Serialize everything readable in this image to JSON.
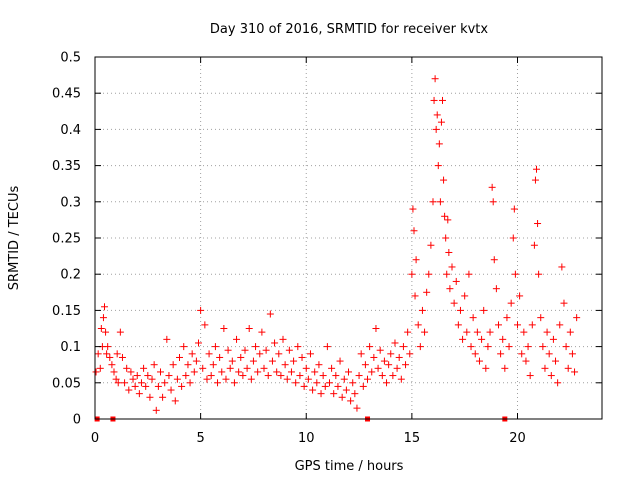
{
  "chart_data": {
    "type": "scatter",
    "title": "Day 310 of 2016, SRMTID for receiver kvtx",
    "xlabel": "GPS time / hours",
    "ylabel": "SRMTID / TECUs",
    "xlim": [
      0,
      24
    ],
    "ylim": [
      0,
      0.5
    ],
    "xticks": [
      0,
      5,
      10,
      15,
      20
    ],
    "yticks": [
      0,
      0.05,
      0.1,
      0.15,
      0.2,
      0.25,
      0.3,
      0.35,
      0.4,
      0.45,
      0.5
    ],
    "grid": true,
    "legend": "none",
    "marker": "plus",
    "color": "#ff0000",
    "gap_markers_x": [
      0.1,
      0.85,
      12.9,
      19.4
    ],
    "series": [
      {
        "name": "kvtx",
        "points": [
          [
            0.05,
            0.065
          ],
          [
            0.15,
            0.09
          ],
          [
            0.25,
            0.07
          ],
          [
            0.3,
            0.125
          ],
          [
            0.35,
            0.1
          ],
          [
            0.4,
            0.14
          ],
          [
            0.45,
            0.155
          ],
          [
            0.5,
            0.12
          ],
          [
            0.55,
            0.09
          ],
          [
            0.6,
            0.1
          ],
          [
            0.7,
            0.085
          ],
          [
            0.8,
            0.075
          ],
          [
            0.9,
            0.065
          ],
          [
            1.0,
            0.055
          ],
          [
            1.05,
            0.09
          ],
          [
            1.1,
            0.05
          ],
          [
            1.2,
            0.12
          ],
          [
            1.3,
            0.085
          ],
          [
            1.4,
            0.05
          ],
          [
            1.5,
            0.07
          ],
          [
            1.6,
            0.04
          ],
          [
            1.7,
            0.065
          ],
          [
            1.8,
            0.055
          ],
          [
            1.9,
            0.045
          ],
          [
            2.0,
            0.06
          ],
          [
            2.1,
            0.035
          ],
          [
            2.2,
            0.05
          ],
          [
            2.3,
            0.07
          ],
          [
            2.4,
            0.045
          ],
          [
            2.5,
            0.06
          ],
          [
            2.6,
            0.03
          ],
          [
            2.7,
            0.055
          ],
          [
            2.8,
            0.075
          ],
          [
            2.9,
            0.012
          ],
          [
            3.0,
            0.045
          ],
          [
            3.1,
            0.065
          ],
          [
            3.2,
            0.03
          ],
          [
            3.3,
            0.05
          ],
          [
            3.4,
            0.11
          ],
          [
            3.5,
            0.06
          ],
          [
            3.6,
            0.04
          ],
          [
            3.7,
            0.075
          ],
          [
            3.8,
            0.025
          ],
          [
            3.9,
            0.055
          ],
          [
            4.0,
            0.085
          ],
          [
            4.1,
            0.045
          ],
          [
            4.2,
            0.1
          ],
          [
            4.3,
            0.06
          ],
          [
            4.4,
            0.075
          ],
          [
            4.5,
            0.05
          ],
          [
            4.6,
            0.09
          ],
          [
            4.7,
            0.065
          ],
          [
            4.8,
            0.08
          ],
          [
            4.9,
            0.105
          ],
          [
            5.0,
            0.15
          ],
          [
            5.1,
            0.07
          ],
          [
            5.2,
            0.13
          ],
          [
            5.3,
            0.055
          ],
          [
            5.4,
            0.09
          ],
          [
            5.5,
            0.06
          ],
          [
            5.6,
            0.075
          ],
          [
            5.7,
            0.1
          ],
          [
            5.8,
            0.05
          ],
          [
            5.9,
            0.085
          ],
          [
            6.0,
            0.065
          ],
          [
            6.1,
            0.125
          ],
          [
            6.2,
            0.055
          ],
          [
            6.3,
            0.095
          ],
          [
            6.4,
            0.07
          ],
          [
            6.5,
            0.08
          ],
          [
            6.6,
            0.05
          ],
          [
            6.7,
            0.11
          ],
          [
            6.8,
            0.065
          ],
          [
            6.9,
            0.085
          ],
          [
            7.0,
            0.06
          ],
          [
            7.1,
            0.095
          ],
          [
            7.2,
            0.07
          ],
          [
            7.3,
            0.125
          ],
          [
            7.4,
            0.055
          ],
          [
            7.5,
            0.08
          ],
          [
            7.6,
            0.1
          ],
          [
            7.7,
            0.065
          ],
          [
            7.8,
            0.09
          ],
          [
            7.9,
            0.12
          ],
          [
            8.0,
            0.07
          ],
          [
            8.1,
            0.095
          ],
          [
            8.2,
            0.06
          ],
          [
            8.3,
            0.145
          ],
          [
            8.4,
            0.08
          ],
          [
            8.5,
            0.105
          ],
          [
            8.6,
            0.065
          ],
          [
            8.7,
            0.09
          ],
          [
            8.8,
            0.06
          ],
          [
            8.9,
            0.11
          ],
          [
            9.0,
            0.075
          ],
          [
            9.1,
            0.055
          ],
          [
            9.2,
            0.095
          ],
          [
            9.3,
            0.065
          ],
          [
            9.4,
            0.08
          ],
          [
            9.5,
            0.05
          ],
          [
            9.6,
            0.1
          ],
          [
            9.7,
            0.06
          ],
          [
            9.8,
            0.085
          ],
          [
            9.9,
            0.045
          ],
          [
            10.0,
            0.07
          ],
          [
            10.1,
            0.055
          ],
          [
            10.2,
            0.09
          ],
          [
            10.3,
            0.04
          ],
          [
            10.4,
            0.065
          ],
          [
            10.5,
            0.05
          ],
          [
            10.6,
            0.075
          ],
          [
            10.7,
            0.035
          ],
          [
            10.8,
            0.06
          ],
          [
            10.9,
            0.045
          ],
          [
            11.0,
            0.1
          ],
          [
            11.1,
            0.05
          ],
          [
            11.2,
            0.07
          ],
          [
            11.3,
            0.035
          ],
          [
            11.4,
            0.06
          ],
          [
            11.5,
            0.045
          ],
          [
            11.6,
            0.08
          ],
          [
            11.7,
            0.03
          ],
          [
            11.8,
            0.055
          ],
          [
            11.9,
            0.04
          ],
          [
            12.0,
            0.065
          ],
          [
            12.1,
            0.025
          ],
          [
            12.2,
            0.05
          ],
          [
            12.3,
            0.035
          ],
          [
            12.4,
            0.015
          ],
          [
            12.5,
            0.06
          ],
          [
            12.6,
            0.09
          ],
          [
            12.7,
            0.045
          ],
          [
            12.8,
            0.075
          ],
          [
            12.9,
            0.055
          ],
          [
            13.0,
            0.1
          ],
          [
            13.1,
            0.065
          ],
          [
            13.2,
            0.085
          ],
          [
            13.3,
            0.125
          ],
          [
            13.4,
            0.07
          ],
          [
            13.5,
            0.095
          ],
          [
            13.6,
            0.06
          ],
          [
            13.7,
            0.08
          ],
          [
            13.8,
            0.05
          ],
          [
            13.9,
            0.075
          ],
          [
            14.0,
            0.09
          ],
          [
            14.1,
            0.06
          ],
          [
            14.2,
            0.105
          ],
          [
            14.3,
            0.07
          ],
          [
            14.4,
            0.085
          ],
          [
            14.5,
            0.055
          ],
          [
            14.6,
            0.1
          ],
          [
            14.7,
            0.075
          ],
          [
            14.8,
            0.12
          ],
          [
            14.9,
            0.09
          ],
          [
            15.0,
            0.2
          ],
          [
            15.05,
            0.29
          ],
          [
            15.1,
            0.26
          ],
          [
            15.15,
            0.17
          ],
          [
            15.2,
            0.22
          ],
          [
            15.3,
            0.13
          ],
          [
            15.4,
            0.1
          ],
          [
            15.5,
            0.15
          ],
          [
            15.6,
            0.12
          ],
          [
            15.7,
            0.175
          ],
          [
            15.8,
            0.2
          ],
          [
            15.9,
            0.24
          ],
          [
            16.0,
            0.3
          ],
          [
            16.05,
            0.44
          ],
          [
            16.1,
            0.47
          ],
          [
            16.15,
            0.4
          ],
          [
            16.2,
            0.42
          ],
          [
            16.25,
            0.35
          ],
          [
            16.3,
            0.38
          ],
          [
            16.35,
            0.3
          ],
          [
            16.4,
            0.41
          ],
          [
            16.45,
            0.44
          ],
          [
            16.5,
            0.33
          ],
          [
            16.55,
            0.28
          ],
          [
            16.6,
            0.25
          ],
          [
            16.65,
            0.2
          ],
          [
            16.7,
            0.275
          ],
          [
            16.75,
            0.23
          ],
          [
            16.8,
            0.18
          ],
          [
            16.9,
            0.21
          ],
          [
            17.0,
            0.16
          ],
          [
            17.1,
            0.19
          ],
          [
            17.2,
            0.13
          ],
          [
            17.3,
            0.15
          ],
          [
            17.4,
            0.11
          ],
          [
            17.5,
            0.17
          ],
          [
            17.6,
            0.12
          ],
          [
            17.7,
            0.2
          ],
          [
            17.8,
            0.1
          ],
          [
            17.9,
            0.14
          ],
          [
            18.0,
            0.09
          ],
          [
            18.1,
            0.12
          ],
          [
            18.2,
            0.08
          ],
          [
            18.3,
            0.11
          ],
          [
            18.4,
            0.15
          ],
          [
            18.5,
            0.07
          ],
          [
            18.6,
            0.1
          ],
          [
            18.7,
            0.12
          ],
          [
            18.8,
            0.32
          ],
          [
            18.85,
            0.3
          ],
          [
            18.9,
            0.22
          ],
          [
            19.0,
            0.18
          ],
          [
            19.1,
            0.13
          ],
          [
            19.2,
            0.09
          ],
          [
            19.3,
            0.11
          ],
          [
            19.4,
            0.07
          ],
          [
            19.5,
            0.14
          ],
          [
            19.6,
            0.1
          ],
          [
            19.7,
            0.16
          ],
          [
            19.8,
            0.25
          ],
          [
            19.85,
            0.29
          ],
          [
            19.9,
            0.2
          ],
          [
            20.0,
            0.13
          ],
          [
            20.1,
            0.17
          ],
          [
            20.2,
            0.09
          ],
          [
            20.3,
            0.12
          ],
          [
            20.4,
            0.08
          ],
          [
            20.5,
            0.1
          ],
          [
            20.6,
            0.06
          ],
          [
            20.7,
            0.13
          ],
          [
            20.8,
            0.24
          ],
          [
            20.85,
            0.33
          ],
          [
            20.9,
            0.345
          ],
          [
            20.95,
            0.27
          ],
          [
            21.0,
            0.2
          ],
          [
            21.1,
            0.14
          ],
          [
            21.2,
            0.1
          ],
          [
            21.3,
            0.07
          ],
          [
            21.4,
            0.12
          ],
          [
            21.5,
            0.09
          ],
          [
            21.6,
            0.06
          ],
          [
            21.7,
            0.11
          ],
          [
            21.8,
            0.08
          ],
          [
            21.9,
            0.05
          ],
          [
            22.0,
            0.13
          ],
          [
            22.1,
            0.21
          ],
          [
            22.2,
            0.16
          ],
          [
            22.3,
            0.1
          ],
          [
            22.4,
            0.07
          ],
          [
            22.5,
            0.12
          ],
          [
            22.6,
            0.09
          ],
          [
            22.7,
            0.065
          ],
          [
            22.8,
            0.14
          ]
        ]
      }
    ]
  }
}
